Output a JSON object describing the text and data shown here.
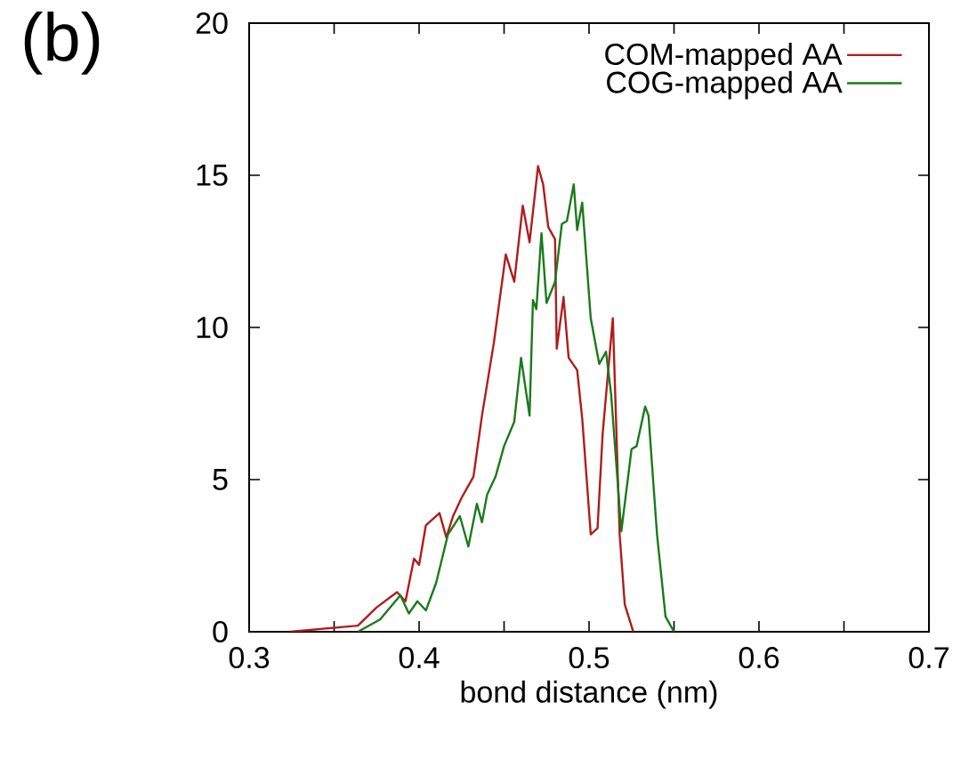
{
  "chart_data": {
    "type": "line",
    "xlabel": "bond distance (nm)",
    "annotations": [
      "(b)"
    ],
    "xlim": [
      0.3,
      0.7
    ],
    "ylim": [
      0,
      20
    ],
    "xticks": [
      0.3,
      0.4,
      0.5,
      0.6,
      0.7
    ],
    "yticks": [
      0,
      5,
      10,
      15,
      20
    ],
    "legend": "top right",
    "grid": false,
    "marker": "none",
    "line_style": "solid",
    "series": [
      {
        "name": "COM-mapped AA",
        "color": "#b01c1c",
        "x": [
          0.324,
          0.364,
          0.375,
          0.387,
          0.392,
          0.397,
          0.4,
          0.404,
          0.412,
          0.416,
          0.42,
          0.425,
          0.432,
          0.437,
          0.444,
          0.451,
          0.456,
          0.461,
          0.465,
          0.47,
          0.473,
          0.476,
          0.48,
          0.481,
          0.485,
          0.488,
          0.493,
          0.496,
          0.501,
          0.505,
          0.508,
          0.514,
          0.518,
          0.521,
          0.526
        ],
        "values": [
          0,
          0.2,
          0.8,
          1.3,
          1.0,
          2.4,
          2.2,
          3.5,
          3.9,
          3.1,
          3.8,
          4.4,
          5.1,
          7.1,
          9.5,
          12.4,
          11.5,
          14.0,
          12.8,
          15.3,
          14.7,
          13.3,
          12.9,
          9.3,
          11.0,
          9.0,
          8.6,
          7.0,
          3.2,
          3.4,
          6.5,
          10.3,
          3.2,
          0.9,
          0
        ]
      },
      {
        "name": "COG-mapped AA",
        "color": "#1a7a1a",
        "x": [
          0.364,
          0.377,
          0.389,
          0.394,
          0.399,
          0.404,
          0.41,
          0.417,
          0.424,
          0.429,
          0.434,
          0.437,
          0.44,
          0.445,
          0.45,
          0.456,
          0.46,
          0.465,
          0.467,
          0.469,
          0.472,
          0.475,
          0.48,
          0.484,
          0.487,
          0.491,
          0.493,
          0.496,
          0.501,
          0.506,
          0.51,
          0.513,
          0.519,
          0.525,
          0.528,
          0.533,
          0.535,
          0.54,
          0.545,
          0.55
        ],
        "values": [
          0,
          0.4,
          1.2,
          0.6,
          1.0,
          0.7,
          1.6,
          3.2,
          3.8,
          2.8,
          4.2,
          3.6,
          4.5,
          5.1,
          6.1,
          6.9,
          9.0,
          7.1,
          10.9,
          10.6,
          13.1,
          10.8,
          11.5,
          13.4,
          13.5,
          14.7,
          13.2,
          14.1,
          10.3,
          8.8,
          9.2,
          7.8,
          3.3,
          6.0,
          6.1,
          7.4,
          7.1,
          3.2,
          0.5,
          0
        ]
      }
    ]
  }
}
